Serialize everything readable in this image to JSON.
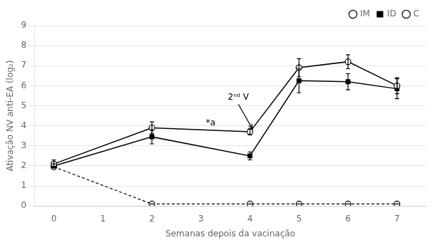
{
  "chart_data": {
    "type": "line",
    "x": [
      0,
      2,
      4,
      5,
      6,
      7
    ],
    "series": [
      {
        "name": "IM",
        "color": "#000000",
        "marker": "open_circle",
        "line_style": "solid",
        "values": [
          2.1,
          3.9,
          3.7,
          6.9,
          7.2,
          6.0
        ],
        "errors": [
          0.2,
          0.3,
          0.15,
          0.45,
          0.35,
          0.4
        ]
      },
      {
        "name": "ID",
        "color": "#000000",
        "marker": "filled_square",
        "line_style": "solid",
        "values": [
          2.0,
          3.45,
          2.5,
          6.25,
          6.2,
          5.85
        ],
        "errors": [
          0.1,
          0.35,
          0.2,
          0.6,
          0.4,
          0.5
        ]
      },
      {
        "name": "C",
        "color": "#000000",
        "marker": "open_circle",
        "line_style": "dashed",
        "values": [
          1.95,
          0.1,
          0.1,
          0.1,
          0.1,
          0.1
        ],
        "errors": [
          0.0,
          0.0,
          0.0,
          0.0,
          0.0,
          0.0
        ]
      }
    ],
    "x_label": "Semanas depois da vacinação",
    "y_label": "Ativação NV anti-EA (log₂)",
    "xlim": [
      -0.4,
      7.6
    ],
    "ylim": [
      0,
      9
    ],
    "xticks": [
      0,
      1,
      2,
      3,
      4,
      5,
      6,
      7
    ],
    "yticks": [
      0,
      1,
      2,
      3,
      4,
      5,
      6,
      7,
      8,
      9
    ],
    "grid": "y",
    "legend": "upper right",
    "annotations": [
      {
        "text": "2ⁿᵈ V",
        "x": 3.55,
        "y": 5.4,
        "arrow": {
          "x": 4.05,
          "y": 3.85
        }
      },
      {
        "text": "*a",
        "x": 3.1,
        "y": 4.15
      }
    ]
  }
}
